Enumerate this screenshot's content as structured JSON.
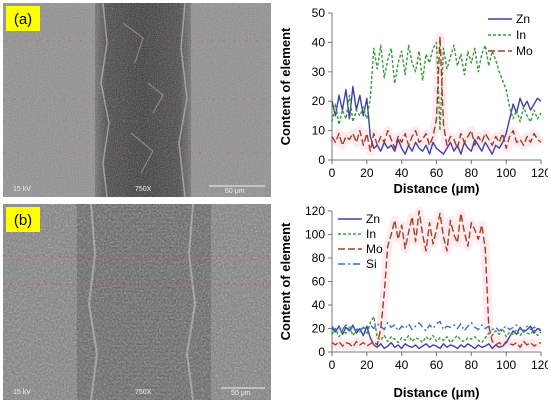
{
  "panel_a": {
    "label": "(a)",
    "sem": {
      "voltage": "15 kV",
      "magnification": "750X",
      "scale": "50 μm"
    }
  },
  "panel_b": {
    "label": "(b)",
    "sem": {
      "voltage": "15 kV",
      "magnification": "750X",
      "scale": "50 μm"
    }
  },
  "colors": {
    "Zn": "#4040a8",
    "In": "#3a9a3a",
    "Mo": "#a0401e",
    "Si": "#3a6fd0",
    "highlight": "#f7c8d8",
    "label_bg": "#ffff00"
  },
  "chart_data": [
    {
      "type": "line",
      "xlabel": "Distance (μm)",
      "ylabel": "Content of element",
      "xlim": [
        0,
        120
      ],
      "ylim": [
        0,
        50
      ],
      "xticks": [
        0,
        20,
        40,
        60,
        80,
        100,
        120
      ],
      "yticks": [
        0,
        10,
        20,
        30,
        40,
        50
      ],
      "legend_position": "top-right",
      "series": [
        {
          "name": "Zn",
          "style": "solid",
          "x": [
            0,
            2,
            4,
            6,
            8,
            10,
            12,
            14,
            16,
            18,
            20,
            22,
            24,
            26,
            28,
            30,
            32,
            34,
            36,
            38,
            40,
            42,
            44,
            46,
            48,
            50,
            52,
            54,
            56,
            58,
            60,
            62,
            64,
            66,
            68,
            70,
            72,
            74,
            76,
            78,
            80,
            82,
            84,
            86,
            88,
            90,
            92,
            94,
            96,
            98,
            100,
            102,
            104,
            106,
            108,
            110,
            112,
            114,
            116,
            118,
            120
          ],
          "y": [
            20,
            15,
            22,
            17,
            24,
            14,
            25,
            17,
            22,
            15,
            21,
            8,
            4,
            5,
            3,
            6,
            4,
            5,
            3,
            7,
            4,
            2,
            5,
            3,
            6,
            4,
            3,
            5,
            2,
            6,
            4,
            3,
            2,
            4,
            6,
            3,
            5,
            2,
            6,
            4,
            3,
            7,
            5,
            3,
            6,
            4,
            2,
            5,
            4,
            6,
            9,
            14,
            19,
            16,
            21,
            18,
            20,
            17,
            19,
            21,
            20
          ]
        },
        {
          "name": "In",
          "style": "dashed",
          "x": [
            0,
            2,
            4,
            6,
            8,
            10,
            12,
            14,
            16,
            18,
            20,
            22,
            24,
            26,
            28,
            30,
            32,
            34,
            36,
            38,
            40,
            42,
            44,
            46,
            48,
            50,
            52,
            54,
            56,
            58,
            60,
            62,
            64,
            66,
            68,
            70,
            72,
            74,
            76,
            78,
            80,
            82,
            84,
            86,
            88,
            90,
            92,
            94,
            96,
            98,
            100,
            102,
            104,
            106,
            108,
            110,
            112,
            114,
            116,
            118,
            120
          ],
          "y": [
            13,
            19,
            12,
            17,
            14,
            22,
            13,
            17,
            15,
            18,
            14,
            21,
            38,
            31,
            39,
            28,
            34,
            38,
            26,
            33,
            37,
            29,
            39,
            33,
            30,
            37,
            27,
            36,
            33,
            38,
            40,
            10,
            38,
            31,
            35,
            39,
            32,
            36,
            29,
            37,
            33,
            38,
            30,
            36,
            39,
            32,
            37,
            34,
            30,
            27,
            24,
            18,
            14,
            17,
            13,
            18,
            15,
            13,
            17,
            14,
            16
          ]
        },
        {
          "name": "Mo",
          "style": "long-dash",
          "x": [
            0,
            2,
            4,
            6,
            8,
            10,
            12,
            14,
            16,
            18,
            20,
            22,
            24,
            26,
            28,
            30,
            32,
            34,
            36,
            38,
            40,
            42,
            44,
            46,
            48,
            50,
            52,
            54,
            56,
            58,
            60,
            62,
            64,
            66,
            68,
            70,
            72,
            74,
            76,
            78,
            80,
            82,
            84,
            86,
            88,
            90,
            92,
            94,
            96,
            98,
            100,
            102,
            104,
            106,
            108,
            110,
            112,
            114,
            116,
            118,
            120
          ],
          "y": [
            8,
            6,
            9,
            5,
            8,
            7,
            9,
            6,
            10,
            5,
            9,
            3,
            9,
            5,
            8,
            6,
            10,
            7,
            4,
            8,
            6,
            9,
            5,
            8,
            10,
            6,
            7,
            9,
            5,
            8,
            14,
            42,
            12,
            5,
            8,
            7,
            4,
            9,
            6,
            8,
            10,
            5,
            8,
            6,
            9,
            7,
            5,
            8,
            6,
            9,
            4,
            8,
            10,
            6,
            7,
            5,
            8,
            6,
            9,
            7,
            6
          ]
        }
      ]
    },
    {
      "type": "line",
      "xlabel": "Distance (μm)",
      "ylabel": "Content of element",
      "xlim": [
        0,
        120
      ],
      "ylim": [
        0,
        120
      ],
      "xticks": [
        0,
        20,
        40,
        60,
        80,
        100,
        120
      ],
      "yticks": [
        0,
        20,
        40,
        60,
        80,
        100,
        120
      ],
      "legend_position": "top-left",
      "series": [
        {
          "name": "Zn",
          "style": "solid",
          "x": [
            0,
            2,
            4,
            6,
            8,
            10,
            12,
            14,
            16,
            18,
            20,
            22,
            24,
            26,
            28,
            30,
            32,
            34,
            36,
            38,
            40,
            42,
            44,
            46,
            48,
            50,
            52,
            54,
            56,
            58,
            60,
            62,
            64,
            66,
            68,
            70,
            72,
            74,
            76,
            78,
            80,
            82,
            84,
            86,
            88,
            90,
            92,
            94,
            96,
            98,
            100,
            102,
            104,
            106,
            108,
            110,
            112,
            114,
            116,
            118,
            120
          ],
          "y": [
            20,
            17,
            22,
            15,
            21,
            18,
            23,
            16,
            20,
            14,
            22,
            12,
            6,
            4,
            7,
            3,
            5,
            8,
            4,
            6,
            3,
            7,
            5,
            4,
            6,
            3,
            5,
            7,
            4,
            6,
            5,
            3,
            7,
            4,
            6,
            5,
            3,
            6,
            4,
            7,
            5,
            3,
            6,
            4,
            5,
            7,
            3,
            6,
            4,
            5,
            8,
            13,
            18,
            15,
            21,
            17,
            19,
            22,
            16,
            20,
            18
          ]
        },
        {
          "name": "In",
          "style": "dashed",
          "x": [
            0,
            2,
            4,
            6,
            8,
            10,
            12,
            14,
            16,
            18,
            20,
            22,
            24,
            26,
            28,
            30,
            32,
            34,
            36,
            38,
            40,
            42,
            44,
            46,
            48,
            50,
            52,
            54,
            56,
            58,
            60,
            62,
            64,
            66,
            68,
            70,
            72,
            74,
            76,
            78,
            80,
            82,
            84,
            86,
            88,
            90,
            92,
            94,
            96,
            98,
            100,
            102,
            104,
            106,
            108,
            110,
            112,
            114,
            116,
            118,
            120
          ],
          "y": [
            15,
            20,
            13,
            18,
            16,
            22,
            14,
            19,
            17,
            21,
            15,
            25,
            30,
            12,
            10,
            14,
            9,
            13,
            11,
            8,
            12,
            10,
            14,
            9,
            12,
            11,
            8,
            13,
            10,
            14,
            9,
            12,
            10,
            13,
            8,
            11,
            14,
            10,
            9,
            12,
            11,
            13,
            10,
            8,
            12,
            16,
            14,
            18,
            15,
            20,
            13,
            17,
            15,
            19,
            14,
            18,
            16,
            15,
            19,
            14,
            17
          ]
        },
        {
          "name": "Mo",
          "style": "long-dash",
          "x": [
            0,
            2,
            4,
            6,
            8,
            10,
            12,
            14,
            16,
            18,
            20,
            22,
            24,
            26,
            28,
            30,
            32,
            34,
            36,
            38,
            40,
            42,
            44,
            46,
            48,
            50,
            52,
            54,
            56,
            58,
            60,
            62,
            64,
            66,
            68,
            70,
            72,
            74,
            76,
            78,
            80,
            82,
            84,
            86,
            88,
            90,
            92,
            94,
            96,
            98,
            100,
            102,
            104,
            106,
            108,
            110,
            112,
            114,
            116,
            118,
            120
          ],
          "y": [
            8,
            6,
            9,
            5,
            8,
            7,
            4,
            9,
            6,
            8,
            5,
            7,
            9,
            6,
            20,
            50,
            90,
            100,
            112,
            96,
            108,
            88,
            102,
            115,
            94,
            120,
            100,
            86,
            110,
            92,
            104,
            118,
            98,
            86,
            112,
            100,
            93,
            118,
            102,
            90,
            110,
            104,
            96,
            108,
            88,
            22,
            9,
            6,
            8,
            5,
            9,
            7,
            6,
            8,
            4,
            9,
            6,
            8,
            5,
            7,
            8
          ]
        },
        {
          "name": "Si",
          "style": "dash-dot",
          "x": [
            0,
            2,
            4,
            6,
            8,
            10,
            12,
            14,
            16,
            18,
            20,
            22,
            24,
            26,
            28,
            30,
            32,
            34,
            36,
            38,
            40,
            42,
            44,
            46,
            48,
            50,
            52,
            54,
            56,
            58,
            60,
            62,
            64,
            66,
            68,
            70,
            72,
            74,
            76,
            78,
            80,
            82,
            84,
            86,
            88,
            90,
            92,
            94,
            96,
            98,
            100,
            102,
            104,
            106,
            108,
            110,
            112,
            114,
            116,
            118,
            120
          ],
          "y": [
            22,
            18,
            21,
            19,
            23,
            17,
            22,
            20,
            18,
            21,
            19,
            23,
            20,
            24,
            22,
            19,
            25,
            21,
            23,
            18,
            22,
            20,
            24,
            19,
            22,
            25,
            21,
            18,
            23,
            20,
            24,
            26,
            19,
            22,
            21,
            23,
            20,
            24,
            18,
            22,
            25,
            21,
            19,
            23,
            20,
            22,
            19,
            21,
            18,
            20,
            22,
            19,
            21,
            23,
            20,
            18,
            22,
            19,
            21,
            20,
            19
          ]
        }
      ]
    }
  ]
}
